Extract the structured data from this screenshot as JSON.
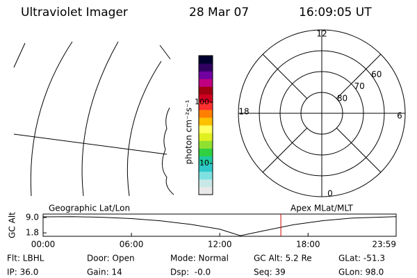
{
  "header": {
    "title": "Ultraviolet Imager",
    "date": "28 Mar 07",
    "time": "16:09:05 UT"
  },
  "colorbar": {
    "label": "photon cm⁻²s⁻¹",
    "log": true,
    "lim": [
      3.1,
      577
    ],
    "ticks": [
      10,
      100
    ],
    "colors": [
      "#e8e8e8",
      "#c8e8e8",
      "#7fe0e0",
      "#30c8c8",
      "#20c8a0",
      "#30d040",
      "#90e030",
      "#e0f020",
      "#ffff60",
      "#ffc000",
      "#ff8000",
      "#ff3030",
      "#d00020",
      "#a00010",
      "#c00080",
      "#7000a0",
      "#300060",
      "#000030"
    ]
  },
  "polar": {
    "lat_lim": [
      50,
      90
    ],
    "lat_ticks": [
      60,
      70,
      80
    ],
    "hour_ticks": [
      12,
      18,
      6,
      0
    ]
  },
  "chart_data": {
    "type": "line",
    "ylabel": "GC Alt",
    "left_label": "Geographic Lat/Lon",
    "right_label": "Apex MLat/MLT",
    "x": [
      0,
      2,
      4,
      6,
      8,
      10,
      12,
      13.4,
      15,
      17,
      19,
      21,
      23.98
    ],
    "values": [
      9.3,
      9.4,
      9.1,
      8.5,
      7.4,
      5.8,
      3.5,
      0.5,
      2.8,
      5.6,
      7.5,
      8.7,
      9.4
    ],
    "color": "#000000",
    "marker": 16.15,
    "marker_color": "#d00000",
    "xlim": [
      0,
      23.983
    ],
    "ylim": [
      0.2,
      10.6
    ],
    "xticks": [
      {
        "value": 0,
        "label": "00:00"
      },
      {
        "value": 6,
        "label": "06:00"
      },
      {
        "value": 12,
        "label": "12:00"
      },
      {
        "value": 18,
        "label": "18:00"
      },
      {
        "value": 23.983,
        "label": "23:59"
      }
    ],
    "yticks": [
      {
        "value": 9,
        "label": "9.0"
      },
      1.8
    ]
  },
  "status": {
    "rows": [
      [
        "Flt: LBHL",
        "Door: Open",
        "Mode: Normal",
        "GC Alt: 5.2 Re",
        "GLat: -51.3"
      ],
      [
        "IP: 36.0",
        "Gain: 14",
        "Dsp:  -0.0",
        "Seq: 39",
        "GLon: 98.0"
      ]
    ]
  }
}
